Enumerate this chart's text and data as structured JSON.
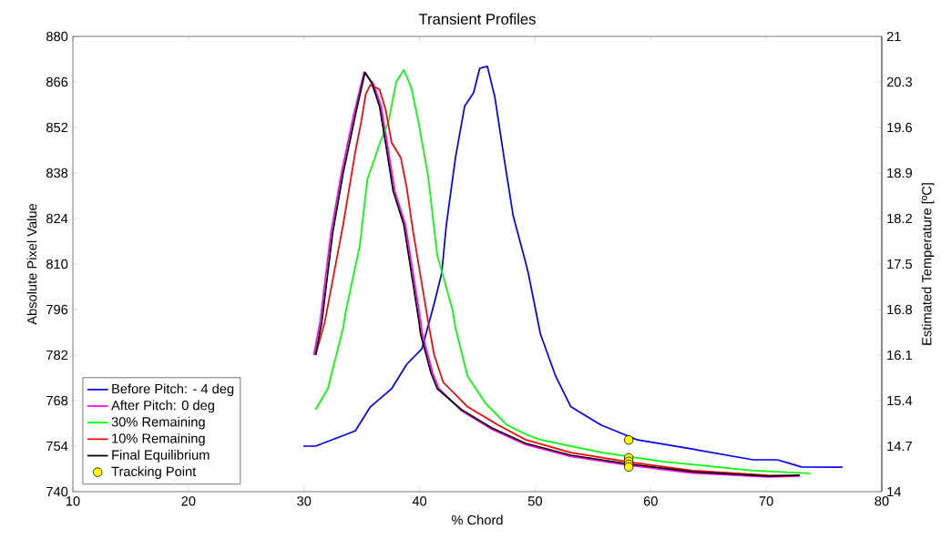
{
  "chart_data": {
    "type": "line",
    "title": "Transient Profiles",
    "xlabel": "% Chord",
    "ylabel": "Absolute Pixel Value",
    "y2label": "Estimated Temperature [ºC]",
    "xlim": [
      10,
      80
    ],
    "xticks": [
      10,
      20,
      30,
      40,
      50,
      60,
      70,
      80
    ],
    "ylim": [
      740,
      880
    ],
    "yticks": [
      740,
      754,
      768,
      782,
      796,
      810,
      824,
      838,
      852,
      866,
      880
    ],
    "y2lim": [
      14,
      21
    ],
    "y2ticks": [
      14,
      14.7,
      15.4,
      16.1,
      16.8,
      17.5,
      18.2,
      18.9,
      19.6,
      20.3,
      21
    ],
    "legend": "bottom left",
    "series": [
      {
        "name": "Before Pitch: - 4 deg",
        "color": "#0000ff",
        "x": [
          29.94,
          31.0,
          34.44,
          35.75,
          37.59,
          38.9,
          40.2,
          41.27,
          41.92,
          42.32,
          43.11,
          43.9,
          44.68,
          45.21,
          45.87,
          46.52,
          47.31,
          48.1,
          49.15,
          49.41,
          50.46,
          51.78,
          53.1,
          55.7,
          58.87,
          63.6,
          68.86,
          70.96,
          73.06,
          76.6
        ],
        "values": [
          754,
          754,
          758.7,
          766.1,
          771.7,
          779.2,
          783.9,
          797.9,
          807.2,
          822.1,
          842.7,
          858.5,
          862.7,
          870.2,
          870.8,
          861.3,
          842.7,
          824.9,
          810.9,
          807.2,
          788.5,
          775.5,
          766.1,
          760.5,
          755.9,
          753.1,
          749.8,
          749.8,
          747.6,
          747.5
        ]
      },
      {
        "name": "After Pitch: 0 deg",
        "color": "#ff00ff",
        "x": [
          30.85,
          31.4,
          32.32,
          33.24,
          33.63,
          34.29,
          35.2,
          36.0,
          36.68,
          37.2,
          37.86,
          38.78,
          40.1,
          40.24,
          41.15,
          41.68,
          43.63,
          46.26,
          49.15,
          53.1,
          58.35,
          63.6,
          70.15,
          72.9
        ],
        "values": [
          782,
          792.3,
          819.3,
          838,
          844.5,
          855.7,
          869,
          865.5,
          858.5,
          847.3,
          832.4,
          822.1,
          792.4,
          788.5,
          776.4,
          771.7,
          764.9,
          759.2,
          754.5,
          750.8,
          748.0,
          745.7,
          744.5,
          744.8
        ]
      },
      {
        "name": "30% Remaining",
        "color": "#00ff00",
        "x": [
          31.0,
          32.07,
          33.39,
          33.65,
          34.83,
          35.49,
          36.14,
          36.54,
          37.33,
          37.98,
          38.64,
          39.3,
          39.95,
          40.74,
          41.53,
          42.85,
          43.11,
          44.16,
          45.73,
          47.57,
          49.15,
          50.4,
          55.7,
          60.97,
          68.85,
          73.85
        ],
        "values": [
          765.2,
          771.7,
          790.4,
          796,
          815.6,
          836.1,
          842.7,
          846.9,
          853.9,
          866,
          869.7,
          864.1,
          852.9,
          837.1,
          812.8,
          796,
          790.4,
          775.5,
          767.1,
          760.5,
          757.7,
          756,
          752.1,
          749.3,
          746.5,
          745.6
        ]
      },
      {
        "name": "10% Remaining",
        "color": "#ff0000",
        "x": [
          31.0,
          31.81,
          33.39,
          34.44,
          34.96,
          35.35,
          35.75,
          36.54,
          37.06,
          37.59,
          38.38,
          38.9,
          39.43,
          40.74,
          41.27,
          42.06,
          44.16,
          46.79,
          49.15,
          53.1,
          58.35,
          63.6,
          70.15,
          72.3
        ],
        "values": [
          782,
          792.3,
          822.1,
          844.5,
          853.9,
          862.3,
          865.1,
          863.7,
          857.6,
          847.3,
          842.7,
          833.3,
          820.3,
          792.4,
          782,
          773.6,
          766.1,
          760.5,
          756,
          752,
          749,
          746.5,
          745,
          744.8
        ]
      },
      {
        "name": "Final Equilibrium",
        "color": "#000000",
        "x": [
          31.0,
          31.55,
          32.47,
          33.39,
          33.78,
          34.44,
          35.28,
          35.88,
          36.54,
          37.06,
          37.72,
          38.64,
          39.95,
          40.09,
          41.0,
          41.53,
          43.63,
          46.26,
          49.15,
          53.1,
          58.35,
          63.6,
          70.15,
          72.9
        ],
        "values": [
          782,
          792.3,
          819.3,
          838,
          844.5,
          855.7,
          869,
          865.5,
          858.5,
          847.3,
          832.4,
          822.1,
          792.4,
          788.5,
          776.4,
          771.7,
          765.2,
          759.6,
          754.9,
          751.2,
          748.4,
          746.1,
          744.8,
          745.1
        ]
      },
      {
        "name": "Tracking Point",
        "color": "#ffff00",
        "type": "scatter",
        "marker": "circle",
        "x": [
          58.1,
          58.1,
          58.1,
          58.1,
          58.1
        ],
        "values": [
          755.9,
          750.4,
          749.3,
          748.4,
          747.6
        ]
      }
    ]
  }
}
